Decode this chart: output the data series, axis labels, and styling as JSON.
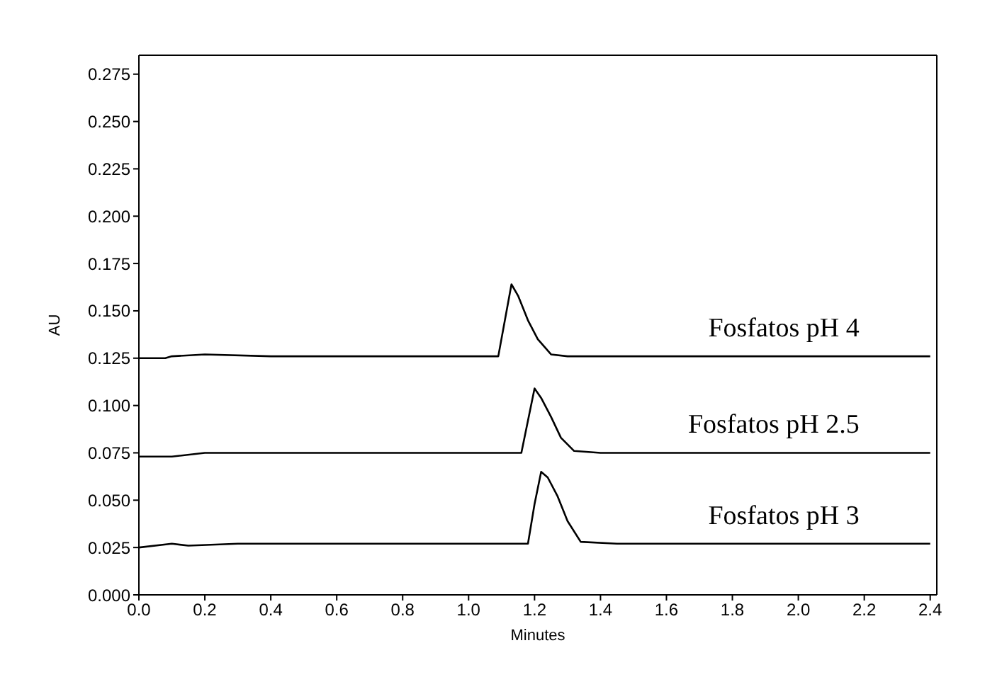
{
  "chart_data": {
    "type": "line",
    "xlabel": "Minutes",
    "ylabel": "AU",
    "xlim": [
      0,
      2.42
    ],
    "ylim": [
      0,
      0.285
    ],
    "xticks": [
      {
        "value": 0,
        "label": "0.0"
      },
      {
        "value": 0.2,
        "label": "0.2"
      },
      {
        "value": 0.4,
        "label": "0.4"
      },
      {
        "value": 0.6,
        "label": "0.6"
      },
      {
        "value": 0.8,
        "label": "0.8"
      },
      {
        "value": 1,
        "label": "1.0"
      },
      {
        "value": 1.2,
        "label": "1.2"
      },
      {
        "value": 1.4,
        "label": "1.4"
      },
      {
        "value": 1.6,
        "label": "1.6"
      },
      {
        "value": 1.8,
        "label": "1.8"
      },
      {
        "value": 2,
        "label": "2.0"
      },
      {
        "value": 2.2,
        "label": "2.2"
      },
      {
        "value": 2.4,
        "label": "2.4"
      }
    ],
    "yticks": [
      {
        "value": 0,
        "label": "0.000"
      },
      {
        "value": 0.025,
        "label": "0.025"
      },
      {
        "value": 0.05,
        "label": "0.050"
      },
      {
        "value": 0.075,
        "label": "0.075"
      },
      {
        "value": 0.1,
        "label": "0.100"
      },
      {
        "value": 0.125,
        "label": "0.125"
      },
      {
        "value": 0.15,
        "label": "0.150"
      },
      {
        "value": 0.175,
        "label": "0.175"
      },
      {
        "value": 0.2,
        "label": "0.200"
      },
      {
        "value": 0.225,
        "label": "0.225"
      },
      {
        "value": 0.25,
        "label": "0.250"
      },
      {
        "value": 0.275,
        "label": "0.275"
      }
    ],
    "grid": false,
    "legend": false,
    "marker": "none",
    "line_style": "solid",
    "series": [
      {
        "name": "Fosfatos pH 4",
        "color": "#000000",
        "x": [
          0,
          0.08,
          0.1,
          0.2,
          0.4,
          0.8,
          1.0,
          1.09,
          1.11,
          1.13,
          1.15,
          1.18,
          1.21,
          1.25,
          1.3,
          1.6,
          2.0,
          2.4
        ],
        "values": [
          0.125,
          0.125,
          0.126,
          0.127,
          0.126,
          0.126,
          0.126,
          0.126,
          0.145,
          0.164,
          0.158,
          0.145,
          0.135,
          0.127,
          0.126,
          0.126,
          0.126,
          0.126
        ]
      },
      {
        "name": "Fosfatos pH 2.5",
        "color": "#000000",
        "x": [
          0,
          0.1,
          0.2,
          0.3,
          0.6,
          1.0,
          1.16,
          1.18,
          1.2,
          1.22,
          1.25,
          1.28,
          1.32,
          1.4,
          2.0,
          2.4
        ],
        "values": [
          0.073,
          0.073,
          0.075,
          0.075,
          0.075,
          0.075,
          0.075,
          0.092,
          0.109,
          0.104,
          0.094,
          0.083,
          0.076,
          0.075,
          0.075,
          0.075
        ]
      },
      {
        "name": "Fosfatos pH 3",
        "color": "#000000",
        "x": [
          0,
          0.1,
          0.15,
          0.3,
          0.6,
          1.0,
          1.18,
          1.2,
          1.22,
          1.24,
          1.27,
          1.3,
          1.34,
          1.45,
          2.0,
          2.4
        ],
        "values": [
          0.025,
          0.027,
          0.026,
          0.027,
          0.027,
          0.027,
          0.027,
          0.048,
          0.065,
          0.062,
          0.052,
          0.039,
          0.028,
          0.027,
          0.027,
          0.027
        ]
      }
    ]
  }
}
